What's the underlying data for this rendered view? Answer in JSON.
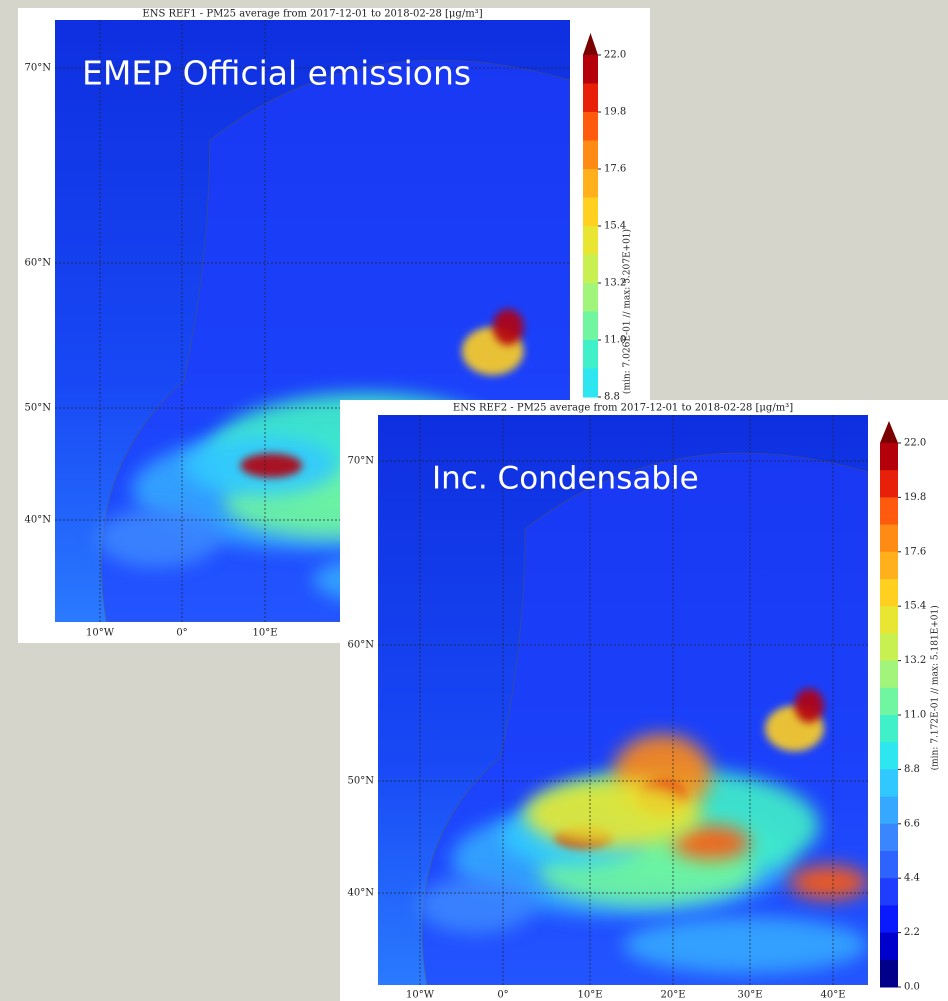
{
  "panels": [
    {
      "title": "ENS REF1 - PM25 average from 2017-12-01 to 2018-02-28 [μg/m³]",
      "label": "EMEP Official emissions",
      "lat_labels": [
        "70°N",
        "60°N",
        "50°N",
        "40°N"
      ],
      "lon_labels": [
        "10°W",
        "0°",
        "10°E"
      ],
      "colorbar_ticks": [
        "22.0",
        "19.8",
        "17.6",
        "15.4",
        "13.2",
        "11.0",
        "8.8"
      ],
      "colorbar_note": "(min: 7.026E-01 // max: 5.207E+01)"
    },
    {
      "title": "ENS REF2 - PM25 average from 2017-12-01 to 2018-02-28 [μg/m³]",
      "label": "Inc. Condensable",
      "lat_labels": [
        "70°N",
        "60°N",
        "50°N",
        "40°N"
      ],
      "lon_labels": [
        "10°W",
        "0°",
        "10°E",
        "20°E",
        "30°E",
        "40°E"
      ],
      "colorbar_ticks": [
        "22.0",
        "19.8",
        "17.6",
        "15.4",
        "13.2",
        "11.0",
        "8.8",
        "6.6",
        "4.4",
        "2.2",
        "0.0"
      ],
      "colorbar_note": "(min: 7.172E-01 // max: 5.181E+01)"
    }
  ]
}
